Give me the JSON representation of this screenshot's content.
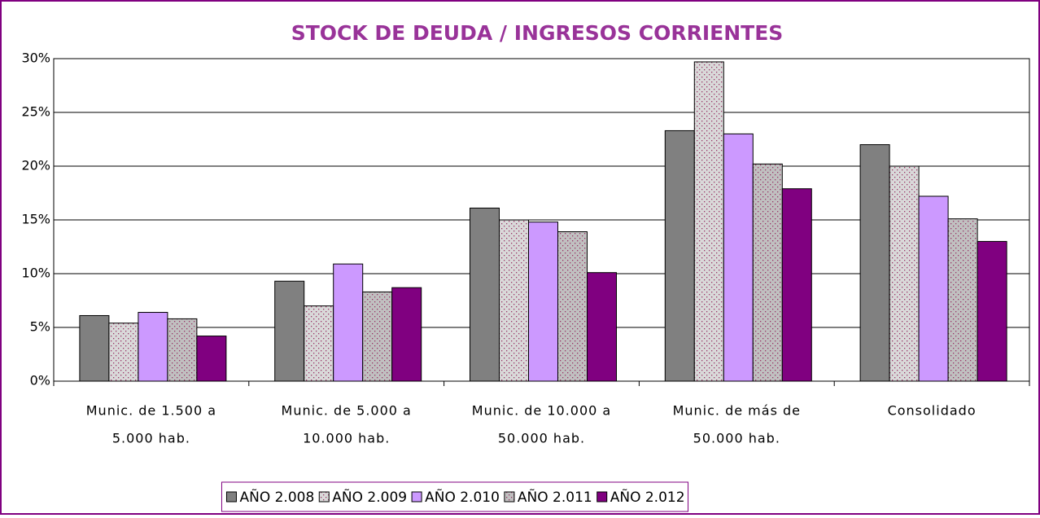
{
  "chart_data": {
    "type": "bar",
    "title": "STOCK DE DEUDA / INGRESOS CORRIENTES",
    "categories": [
      [
        "Munic. de 1.500 a",
        "5.000 hab."
      ],
      [
        "Munic. de 5.000 a",
        "10.000 hab."
      ],
      [
        "Munic. de 10.000 a",
        "50.000 hab."
      ],
      [
        "Munic. de más de",
        "50.000 hab."
      ],
      [
        "Consolidado"
      ]
    ],
    "series": [
      {
        "name": "AÑO 2.008",
        "color": "#808080",
        "values": [
          6.1,
          9.3,
          16.1,
          23.3,
          22.0
        ]
      },
      {
        "name": "AÑO 2.009",
        "color": "#d9d9d9",
        "pattern": "dots",
        "pattern_color": "#993366",
        "values": [
          5.4,
          7.0,
          15.0,
          29.7,
          20.0
        ]
      },
      {
        "name": "AÑO 2.010",
        "color": "#cc99ff",
        "values": [
          6.4,
          10.9,
          14.8,
          23.0,
          17.2
        ]
      },
      {
        "name": "AÑO 2.011",
        "color": "#c0c0c0",
        "pattern": "dots",
        "pattern_color": "#993366",
        "values": [
          5.8,
          8.3,
          13.9,
          20.2,
          15.1
        ]
      },
      {
        "name": "AÑO 2.012",
        "color": "#800080",
        "values": [
          4.2,
          8.7,
          10.1,
          17.9,
          13.0
        ]
      }
    ],
    "ylim": [
      0,
      30
    ],
    "yticks": [
      {
        "value": 0,
        "label": "0%"
      },
      {
        "value": 5,
        "label": "5%"
      },
      {
        "value": 10,
        "label": "10%"
      },
      {
        "value": 15,
        "label": "15%"
      },
      {
        "value": 20,
        "label": "20%"
      },
      {
        "value": 25,
        "label": "25%"
      },
      {
        "value": 30,
        "label": "30%"
      }
    ],
    "grid": true,
    "legend": "bottom"
  }
}
